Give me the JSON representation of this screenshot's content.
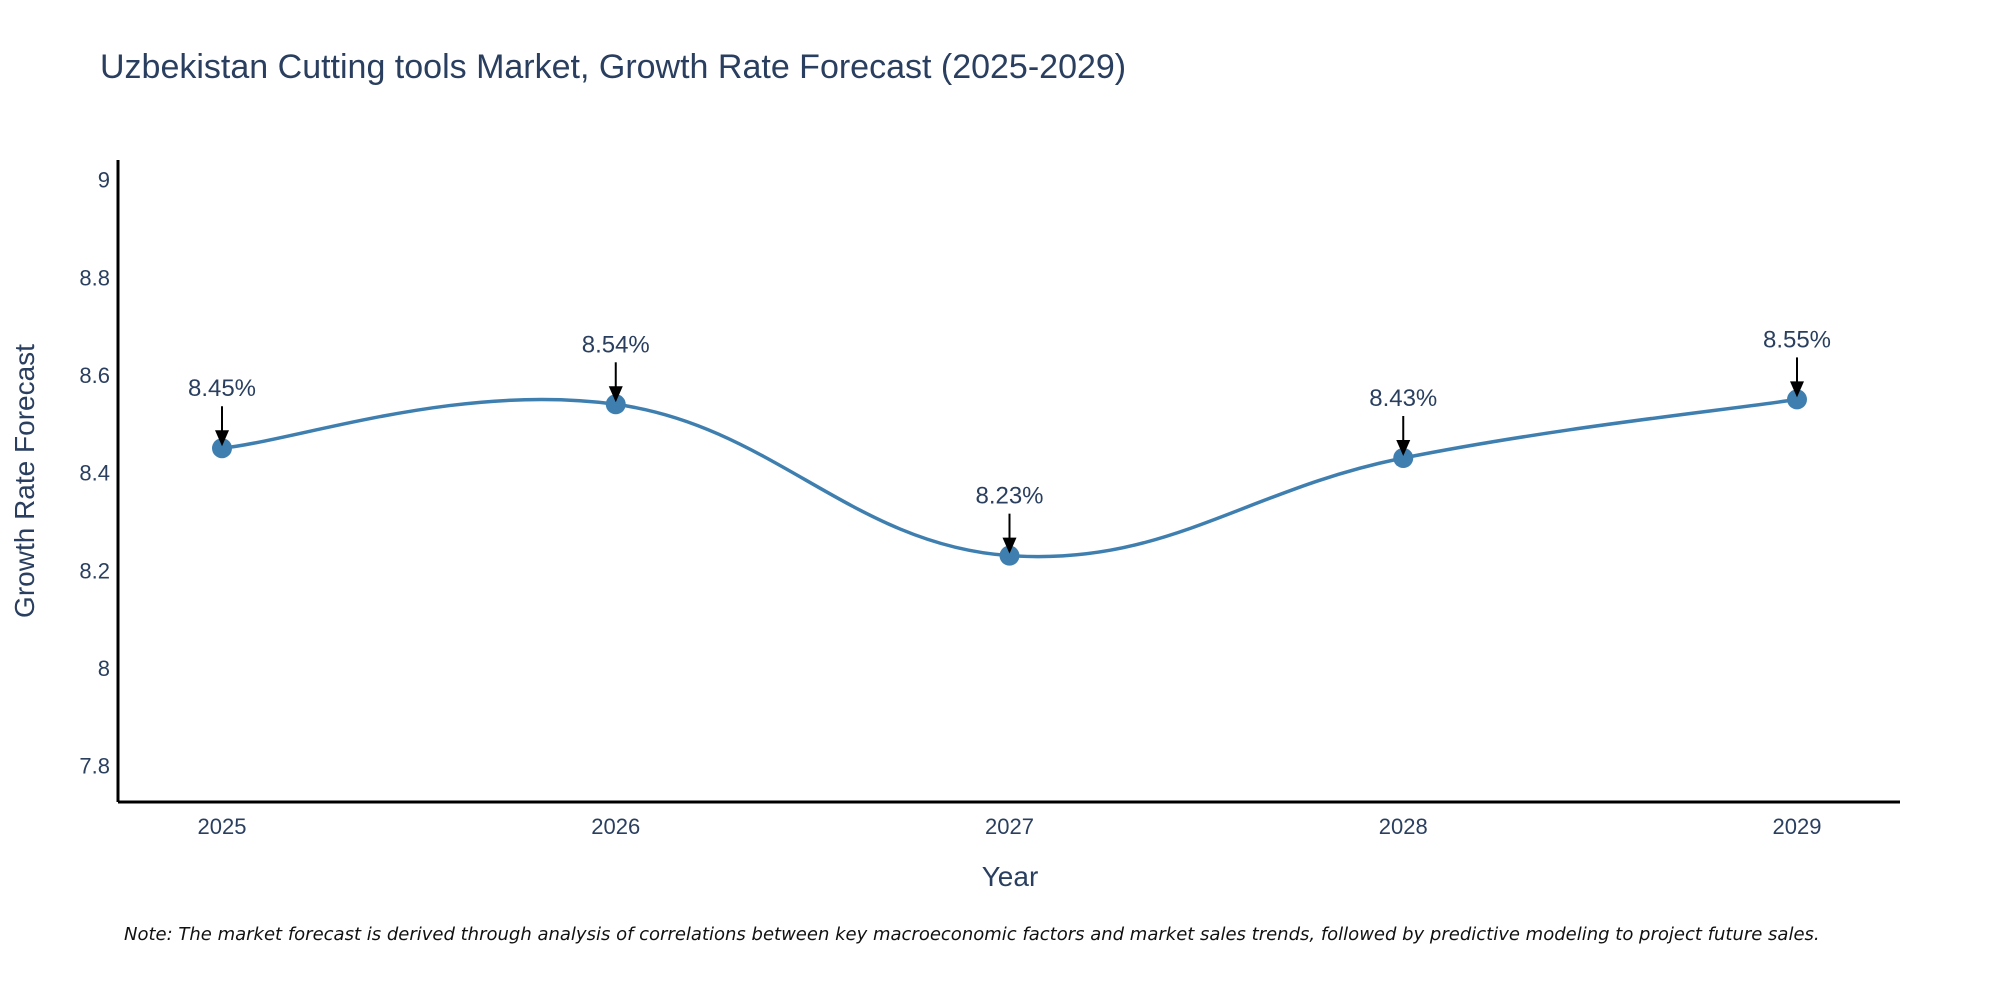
{
  "chart_data": {
    "type": "line",
    "title": "Uzbekistan Cutting tools Market, Growth Rate Forecast (2025-2029)",
    "xlabel": "Year",
    "ylabel": "Growth Rate Forecast",
    "categories": [
      "2025",
      "2026",
      "2027",
      "2028",
      "2029"
    ],
    "values": [
      8.45,
      8.54,
      8.23,
      8.43,
      8.55
    ],
    "annotations": [
      "8.45%",
      "8.54%",
      "8.23%",
      "8.43%",
      "8.55%"
    ],
    "yticks": [
      "7.8",
      "8",
      "8.2",
      "8.4",
      "8.6",
      "8.8",
      "9"
    ],
    "ytick_values": [
      7.8,
      8.0,
      8.2,
      8.4,
      8.6,
      8.8,
      9.0
    ],
    "ylim": [
      7.73,
      9.05
    ],
    "grid": false,
    "line_shape": "spline",
    "colors": {
      "line": "#3f7fb0",
      "marker": "#3f7fb0",
      "axis": "#000000",
      "arrow": "#000000"
    }
  },
  "note": "Note: The market forecast is derived through analysis of correlations between key macroeconomic factors and market sales trends, followed by predictive modeling to project future sales."
}
